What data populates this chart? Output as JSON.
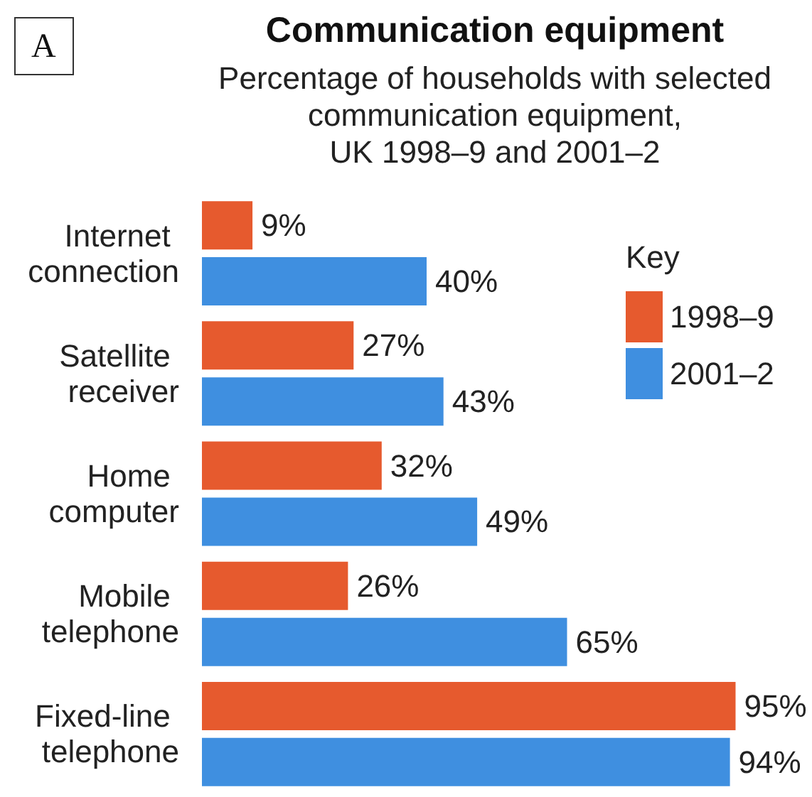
{
  "chart_data": {
    "type": "bar",
    "orientation": "horizontal",
    "title": "Communication equipment",
    "subtitle": "Percentage of households with selected\ncommunication equipment,\nUK 1998–9 and 2001–2",
    "annotations": [
      "A"
    ],
    "categories": [
      "Internet connection",
      "Satellite receiver",
      "Home computer",
      "Mobile telephone",
      "Fixed-line telephone"
    ],
    "series": [
      {
        "name": "1998–9",
        "color": "#e65a2e",
        "values": [
          9,
          27,
          32,
          26,
          95
        ],
        "value_labels": [
          "9%",
          "27%",
          "32%",
          "26%",
          "95%"
        ]
      },
      {
        "name": "2001–2",
        "color": "#3f8fe0",
        "values": [
          40,
          43,
          49,
          65,
          94
        ],
        "value_labels": [
          "40%",
          "43%",
          "49%",
          "65%",
          "94%"
        ]
      }
    ],
    "legend": "top right",
    "legend_title": "Key",
    "grid": false,
    "tick_labels": "y"
  }
}
